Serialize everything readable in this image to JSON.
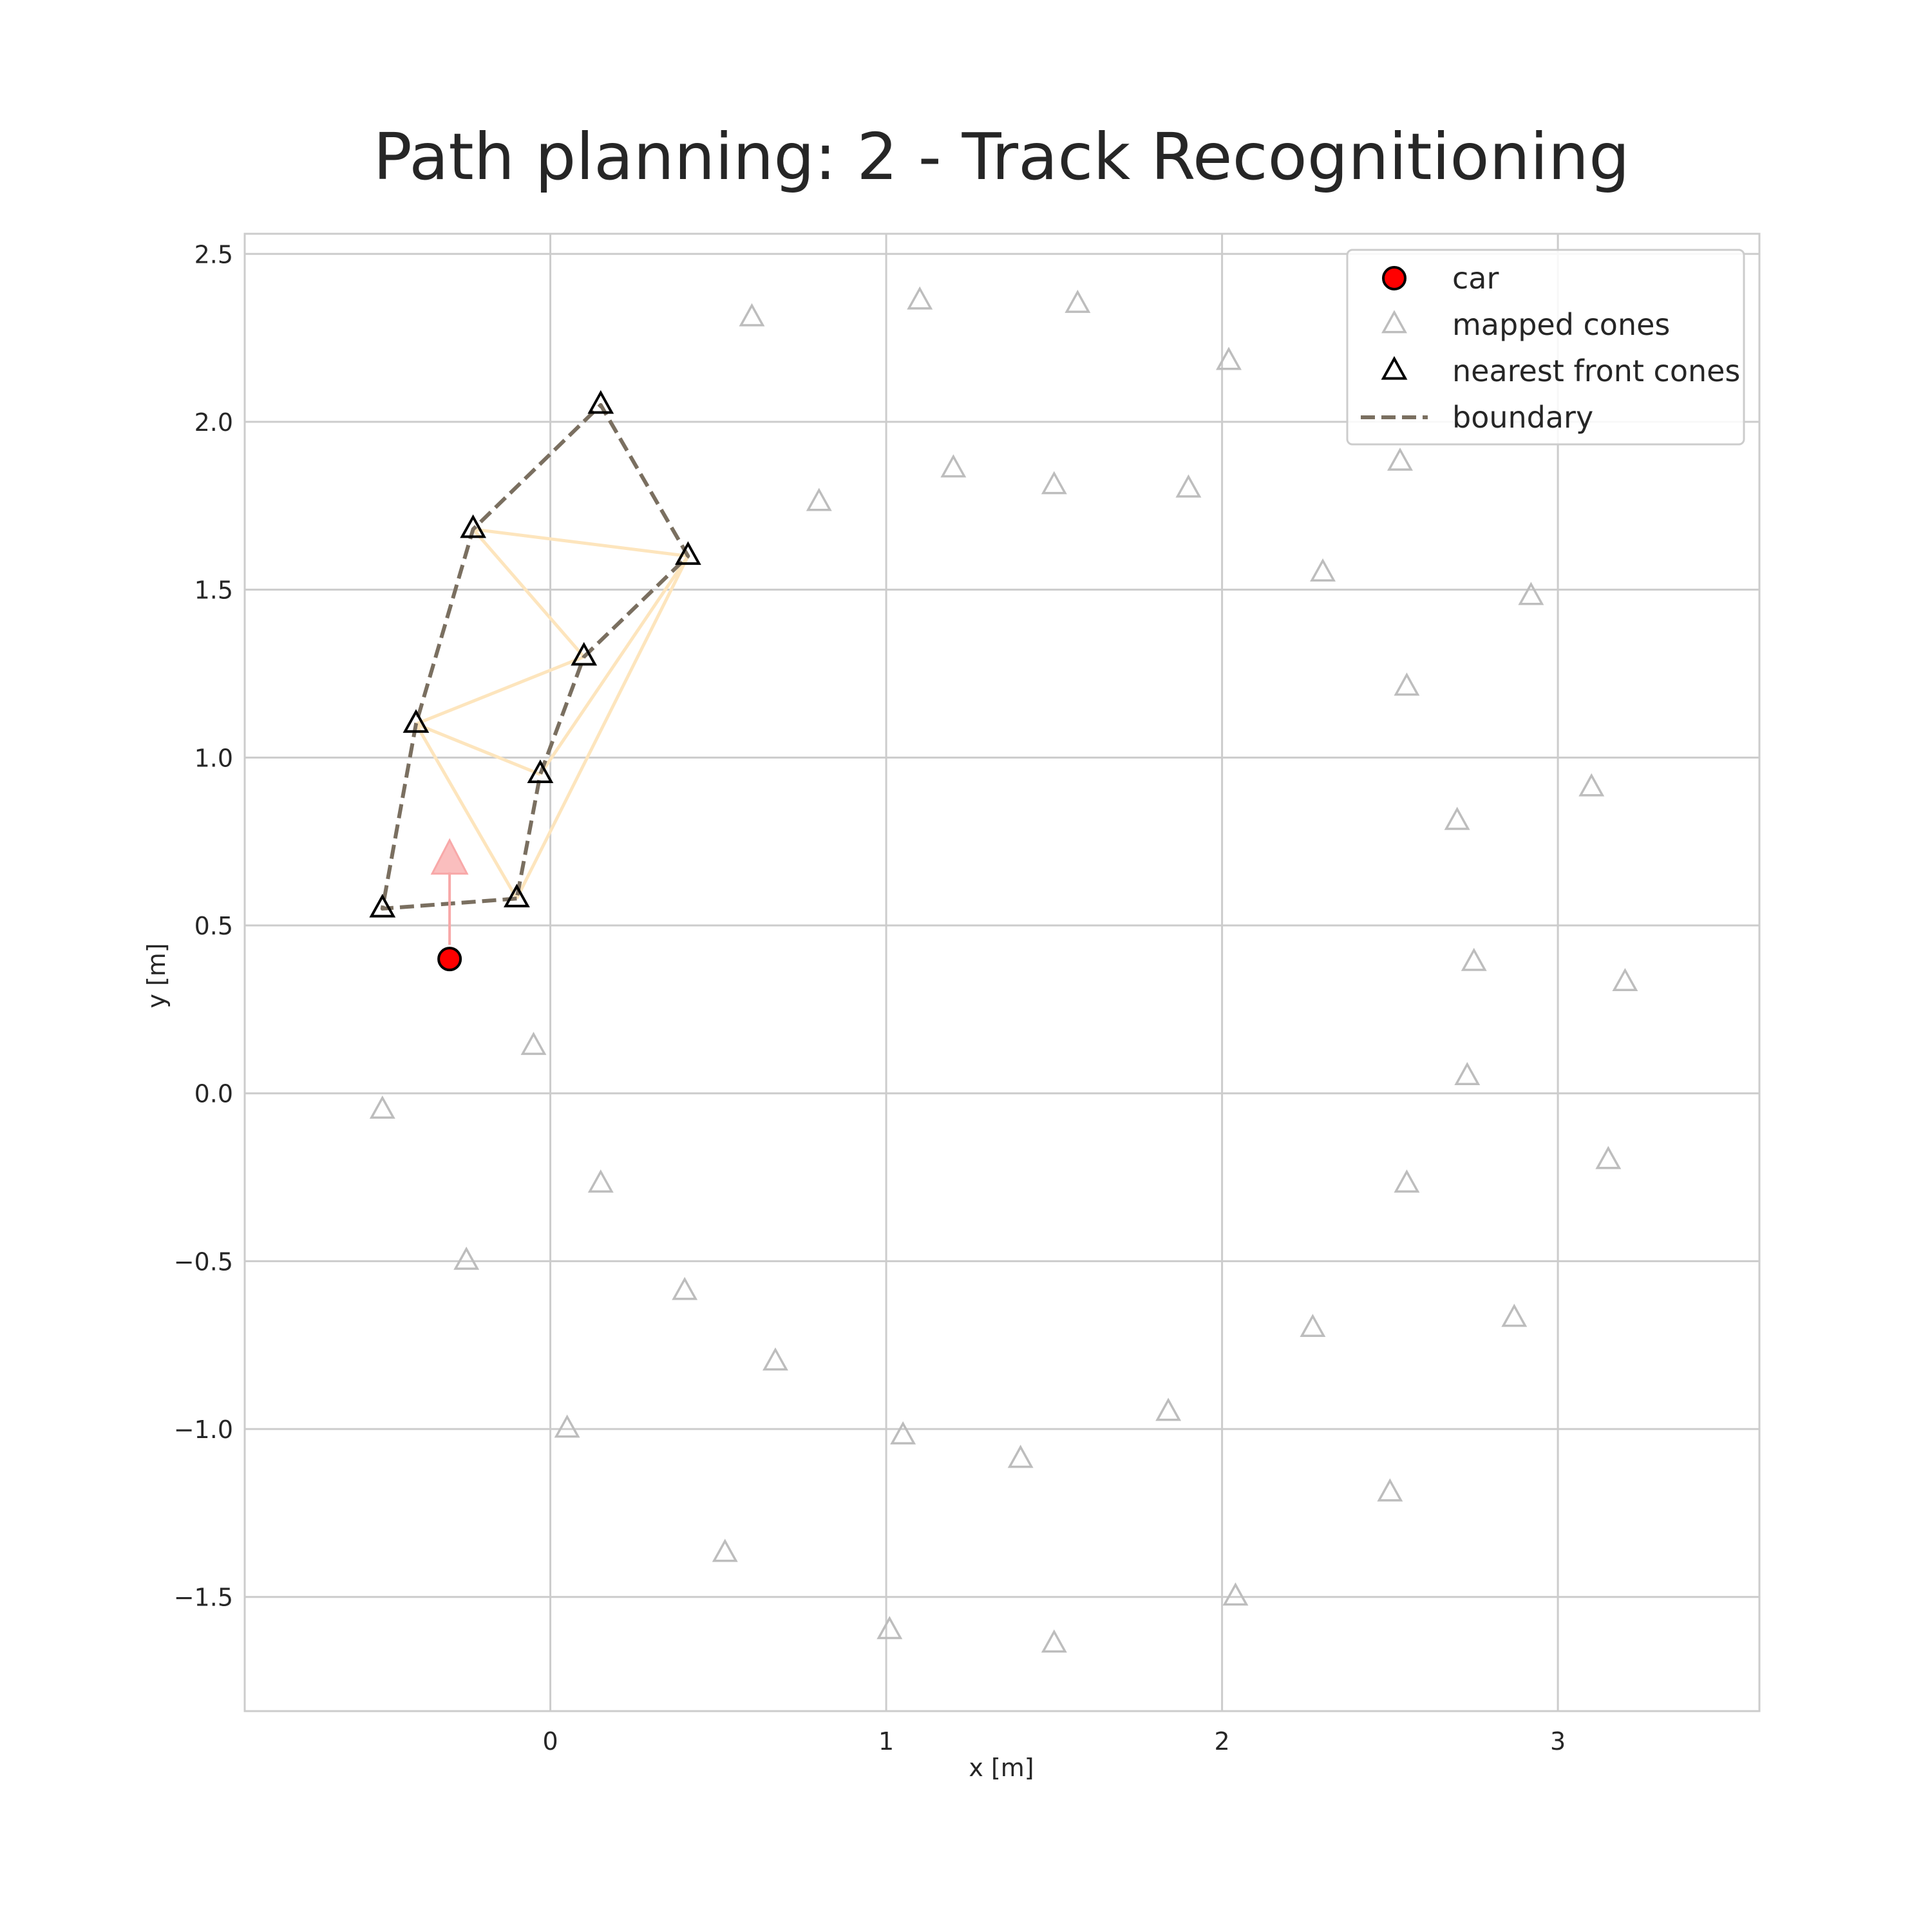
{
  "chart_data": {
    "type": "scatter",
    "title": "Path planning: 2 - Track Recognitioning",
    "xlabel": "x [m]",
    "ylabel": "y [m]",
    "xlim": [
      -0.91,
      3.6
    ],
    "ylim": [
      -1.84,
      2.56
    ],
    "xticks": [
      0,
      1,
      2,
      3
    ],
    "xtick_labels": [
      "0",
      "1",
      "2",
      "3"
    ],
    "yticks": [
      -1.5,
      -1.0,
      -0.5,
      0.0,
      0.5,
      1.0,
      1.5,
      2.0,
      2.5
    ],
    "ytick_labels": [
      "−1.5",
      "−1.0",
      "−0.5",
      "0.0",
      "0.5",
      "1.0",
      "1.5",
      "2.0",
      "2.5"
    ],
    "grid": true,
    "legend_position": "top-right",
    "legend": [
      {
        "label": "car",
        "kind": "car"
      },
      {
        "label": "mapped cones",
        "kind": "mapped"
      },
      {
        "label": "nearest front cones",
        "kind": "front"
      },
      {
        "label": "boundary",
        "kind": "boundary"
      }
    ],
    "colors": {
      "car": "#ff0000",
      "mapped": "#bdbdbd",
      "front": "#000000",
      "boundary": "#7a6f60",
      "triangulation": "#fde5bd",
      "heading": "#f8a8a8",
      "grid": "#cccccc",
      "frame": "#cccccc"
    },
    "car": {
      "x": -0.3,
      "y": 0.4
    },
    "heading_arrow": {
      "from": [
        -0.3,
        0.4
      ],
      "to": [
        -0.3,
        0.75
      ]
    },
    "mapped_cones": [
      [
        0.6,
        2.31
      ],
      [
        1.1,
        2.36
      ],
      [
        1.57,
        2.35
      ],
      [
        2.02,
        2.18
      ],
      [
        2.53,
        1.88
      ],
      [
        0.8,
        1.76
      ],
      [
        1.2,
        1.86
      ],
      [
        1.5,
        1.81
      ],
      [
        1.9,
        1.8
      ],
      [
        2.3,
        1.55
      ],
      [
        2.92,
        1.48
      ],
      [
        2.55,
        1.21
      ],
      [
        3.1,
        0.91
      ],
      [
        2.7,
        0.81
      ],
      [
        2.75,
        0.39
      ],
      [
        3.2,
        0.33
      ],
      [
        2.73,
        0.05
      ],
      [
        3.15,
        -0.2
      ],
      [
        2.55,
        -0.27
      ],
      [
        2.87,
        -0.67
      ],
      [
        2.27,
        -0.7
      ],
      [
        1.84,
        -0.95
      ],
      [
        2.5,
        -1.19
      ],
      [
        2.04,
        -1.5
      ],
      [
        1.5,
        -1.64
      ],
      [
        1.4,
        -1.09
      ],
      [
        1.05,
        -1.02
      ],
      [
        1.01,
        -1.6
      ],
      [
        0.52,
        -1.37
      ],
      [
        0.67,
        -0.8
      ],
      [
        0.4,
        -0.59
      ],
      [
        0.15,
        -0.27
      ],
      [
        -0.25,
        -0.5
      ],
      [
        0.05,
        -1.0
      ],
      [
        -0.05,
        0.14
      ],
      [
        -0.5,
        -0.05
      ]
    ],
    "front_cones": [
      [
        -0.5,
        0.55
      ],
      [
        -0.1,
        0.58
      ],
      [
        -0.03,
        0.95
      ],
      [
        0.1,
        1.3
      ],
      [
        -0.4,
        1.1
      ],
      [
        -0.23,
        1.68
      ],
      [
        0.15,
        2.05
      ],
      [
        0.41,
        1.6
      ]
    ],
    "boundaries": [
      [
        [
          -0.1,
          0.58
        ],
        [
          -0.5,
          0.55
        ],
        [
          -0.4,
          1.1
        ],
        [
          -0.23,
          1.68
        ],
        [
          0.15,
          2.05
        ],
        [
          0.41,
          1.6
        ],
        [
          0.1,
          1.3
        ],
        [
          -0.03,
          0.95
        ],
        [
          -0.1,
          0.58
        ]
      ]
    ],
    "triangulation_edges": [
      [
        [
          -0.4,
          1.1
        ],
        [
          -0.1,
          0.58
        ]
      ],
      [
        [
          -0.4,
          1.1
        ],
        [
          -0.03,
          0.95
        ]
      ],
      [
        [
          -0.4,
          1.1
        ],
        [
          0.1,
          1.3
        ]
      ],
      [
        [
          -0.23,
          1.68
        ],
        [
          0.1,
          1.3
        ]
      ],
      [
        [
          -0.23,
          1.68
        ],
        [
          0.41,
          1.6
        ]
      ],
      [
        [
          -0.1,
          0.58
        ],
        [
          0.41,
          1.6
        ]
      ],
      [
        [
          -0.03,
          0.95
        ],
        [
          0.41,
          1.6
        ]
      ]
    ]
  }
}
